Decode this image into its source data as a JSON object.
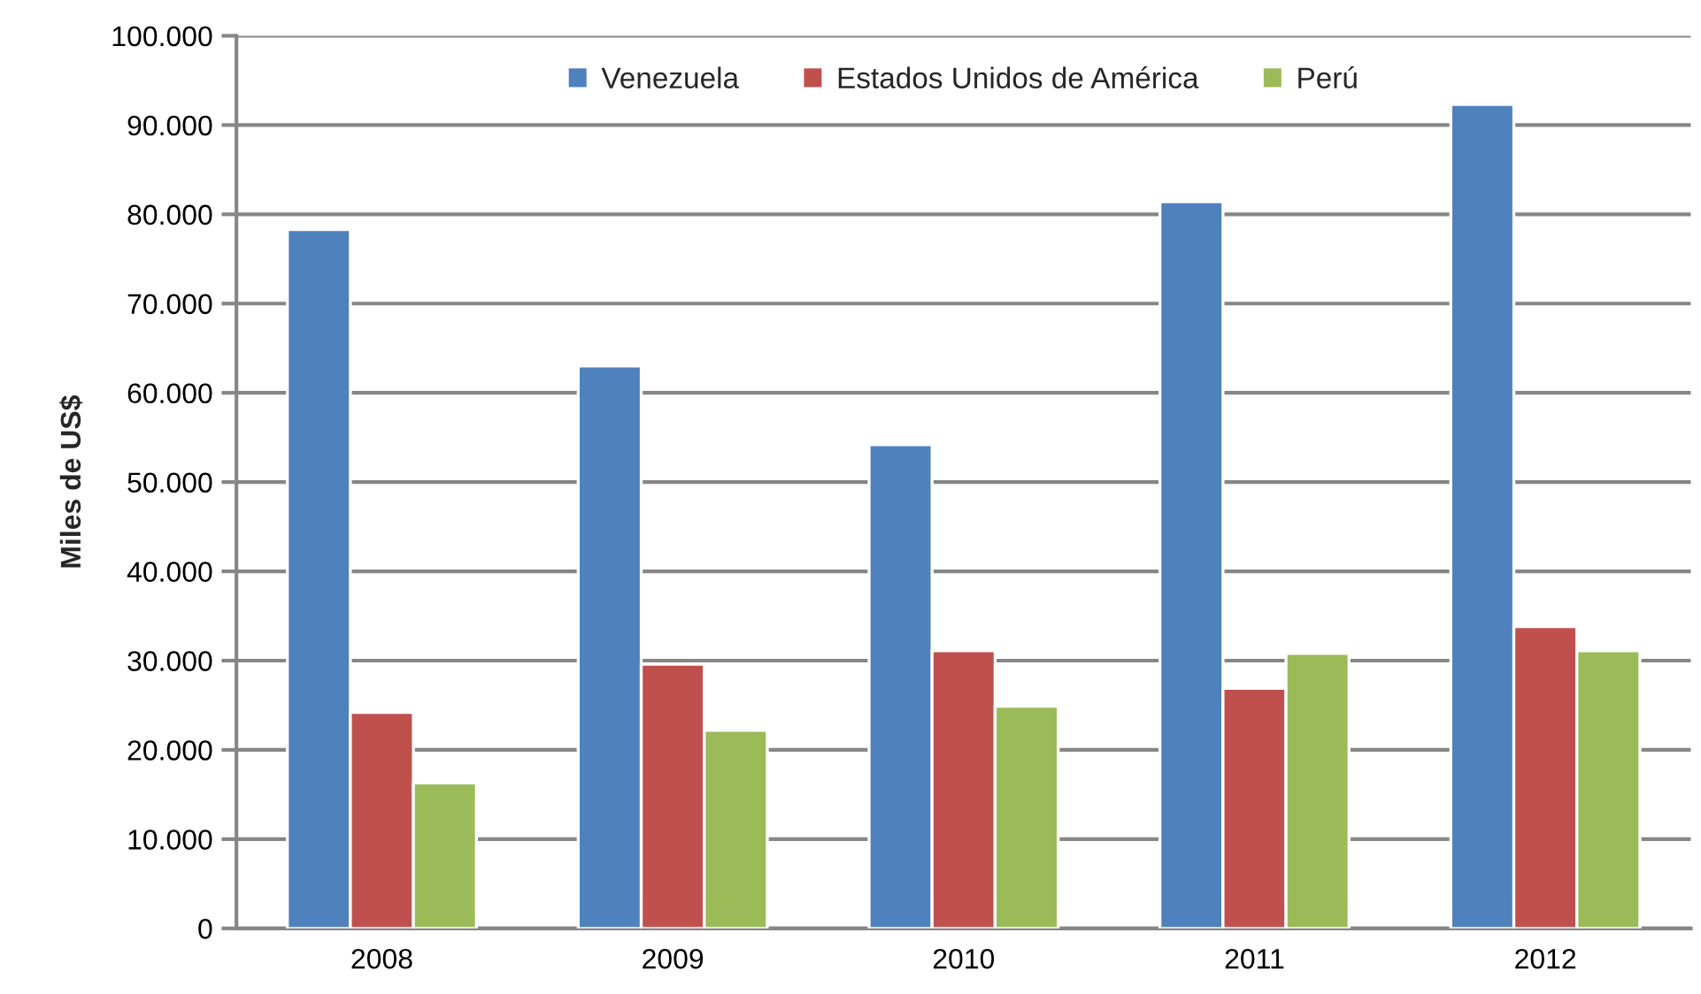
{
  "chart_data": {
    "type": "bar",
    "ylabel": "Miles de US$",
    "categories": [
      "2008",
      "2009",
      "2010",
      "2011",
      "2012"
    ],
    "series": [
      {
        "name": "Venezuela",
        "color": "#4f81bd",
        "values": [
          78300,
          63000,
          54200,
          81400,
          92300
        ]
      },
      {
        "name": "Estados Unidos de América",
        "color": "#c0504d",
        "values": [
          24200,
          29600,
          31100,
          26900,
          33800
        ]
      },
      {
        "name": "Perú",
        "color": "#9bbb59",
        "values": [
          16300,
          22200,
          24900,
          30800,
          31100
        ]
      }
    ],
    "ylim": [
      0,
      100000
    ],
    "yticks": [
      0,
      {
        "value": 10000,
        "label": "10.000"
      },
      {
        "value": 20000,
        "label": "20.000"
      },
      {
        "value": 30000,
        "label": "30.000"
      },
      {
        "value": 40000,
        "label": "40.000"
      },
      {
        "value": 50000,
        "label": "50.000"
      },
      {
        "value": 60000,
        "label": "60.000"
      },
      {
        "value": 70000,
        "label": "70.000"
      },
      {
        "value": 80000,
        "label": "80.000"
      },
      {
        "value": 90000,
        "label": "90.000"
      },
      {
        "value": 100000,
        "label": "100.000"
      }
    ],
    "grid": "y",
    "legend": "top"
  }
}
